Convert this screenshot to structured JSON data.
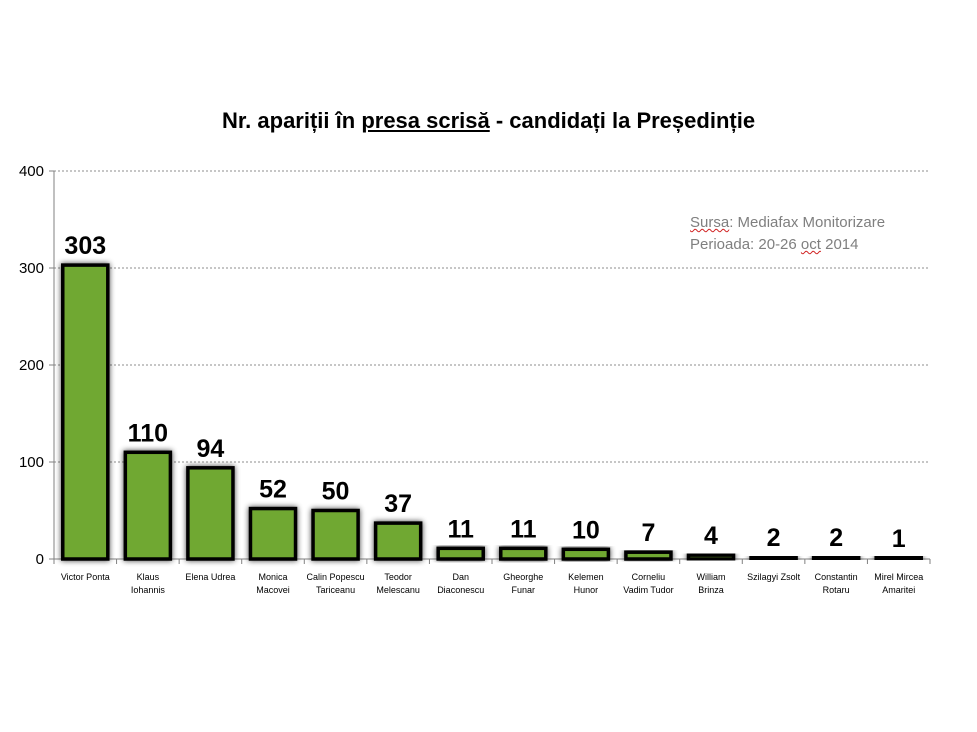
{
  "chart_data": {
    "type": "bar",
    "title_parts": [
      "Nr. apariții în ",
      "presa scrisă",
      "  - candidați la Președinție"
    ],
    "source": {
      "label": "Sursa",
      "rest": ": Mediafax Monitorizare",
      "period_pre": "Perioada: 20-26 ",
      "period_word": "oct",
      "period_post": " 2014"
    },
    "categories": [
      [
        "Victor Ponta"
      ],
      [
        "Klaus",
        "Iohannis"
      ],
      [
        "Elena Udrea"
      ],
      [
        "Monica",
        "Macovei"
      ],
      [
        "Calin Popescu",
        "Tariceanu"
      ],
      [
        "Teodor",
        "Melescanu"
      ],
      [
        "Dan",
        "Diaconescu"
      ],
      [
        "Gheorghe",
        "Funar"
      ],
      [
        "Kelemen",
        "Hunor"
      ],
      [
        "Corneliu",
        "Vadim Tudor"
      ],
      [
        "William",
        "Brinza"
      ],
      [
        "Szilagyi Zsolt"
      ],
      [
        "Constantin",
        "Rotaru"
      ],
      [
        "Mirel Mircea",
        "Amaritei"
      ]
    ],
    "values": [
      303,
      110,
      94,
      52,
      50,
      37,
      11,
      11,
      10,
      7,
      4,
      2,
      2,
      1
    ],
    "yticks": [
      0,
      100,
      200,
      300,
      400
    ],
    "ylim": [
      0,
      400
    ],
    "grid": true,
    "bar_color": "#70a830",
    "bar_border": "#000000"
  }
}
